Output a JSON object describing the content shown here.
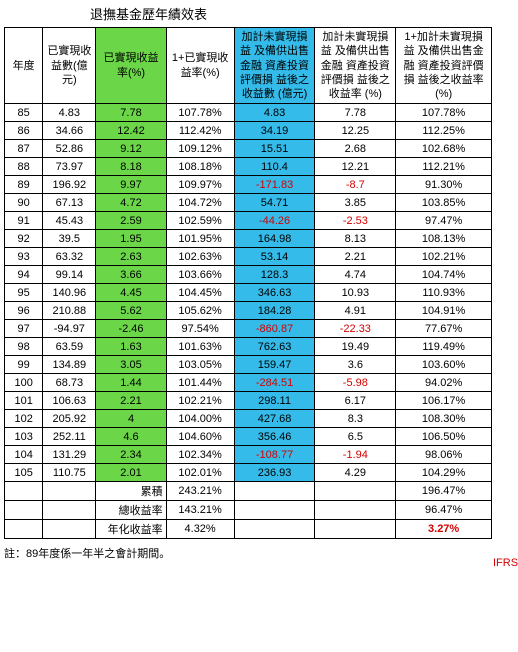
{
  "title": "退撫基金歷年績效表",
  "headers": {
    "year": "年度",
    "realized_amt": "已實現收益數(億元)",
    "realized_rate": "已實現收益率(%)",
    "one_plus_realized": "1+已實現收益率(%)",
    "unrealized_amt": "加計未實現損益 及備供出售金融 資產投資評價損 益後之收益數 (億元)",
    "unrealized_rate": "加計未實現損益 及備供出售金融 資產投資評價損 益後之收益率 (%)",
    "one_plus_unrealized": "1+加計未實現損益 及備供出售金融 資產投資評價損 益後之收益率 (%)"
  },
  "rows": [
    {
      "y": "85",
      "ra": "4.83",
      "rr": "7.78",
      "opr": "107.78%",
      "ua": "4.83",
      "ur": "7.78",
      "opu": "107.78%"
    },
    {
      "y": "86",
      "ra": "34.66",
      "rr": "12.42",
      "opr": "112.42%",
      "ua": "34.19",
      "ur": "12.25",
      "opu": "112.25%"
    },
    {
      "y": "87",
      "ra": "52.86",
      "rr": "9.12",
      "opr": "109.12%",
      "ua": "15.51",
      "ur": "2.68",
      "opu": "102.68%"
    },
    {
      "y": "88",
      "ra": "73.97",
      "rr": "8.18",
      "opr": "108.18%",
      "ua": "110.4",
      "ur": "12.21",
      "opu": "112.21%"
    },
    {
      "y": "89",
      "ra": "196.92",
      "rr": "9.97",
      "opr": "109.97%",
      "ua": "-171.83",
      "ur": "-8.7",
      "opu": "91.30%",
      "uaNeg": true,
      "urNeg": true
    },
    {
      "y": "90",
      "ra": "67.13",
      "rr": "4.72",
      "opr": "104.72%",
      "ua": "54.71",
      "ur": "3.85",
      "opu": "103.85%"
    },
    {
      "y": "91",
      "ra": "45.43",
      "rr": "2.59",
      "opr": "102.59%",
      "ua": "-44.26",
      "ur": "-2.53",
      "opu": "97.47%",
      "uaNeg": true,
      "urNeg": true
    },
    {
      "y": "92",
      "ra": "39.5",
      "rr": "1.95",
      "opr": "101.95%",
      "ua": "164.98",
      "ur": "8.13",
      "opu": "108.13%"
    },
    {
      "y": "93",
      "ra": "63.32",
      "rr": "2.63",
      "opr": "102.63%",
      "ua": "53.14",
      "ur": "2.21",
      "opu": "102.21%"
    },
    {
      "y": "94",
      "ra": "99.14",
      "rr": "3.66",
      "opr": "103.66%",
      "ua": "128.3",
      "ur": "4.74",
      "opu": "104.74%"
    },
    {
      "y": "95",
      "ra": "140.96",
      "rr": "4.45",
      "opr": "104.45%",
      "ua": "346.63",
      "ur": "10.93",
      "opu": "110.93%"
    },
    {
      "y": "96",
      "ra": "210.88",
      "rr": "5.62",
      "opr": "105.62%",
      "ua": "184.28",
      "ur": "4.91",
      "opu": "104.91%"
    },
    {
      "y": "97",
      "ra": "-94.97",
      "rr": "-2.46",
      "opr": "97.54%",
      "ua": "-860.87",
      "ur": "-22.33",
      "opu": "77.67%",
      "uaNeg": true,
      "urNeg": true
    },
    {
      "y": "98",
      "ra": "63.59",
      "rr": "1.63",
      "opr": "101.63%",
      "ua": "762.63",
      "ur": "19.49",
      "opu": "119.49%"
    },
    {
      "y": "99",
      "ra": "134.89",
      "rr": "3.05",
      "opr": "103.05%",
      "ua": "159.47",
      "ur": "3.6",
      "opu": "103.60%"
    },
    {
      "y": "100",
      "ra": "68.73",
      "rr": "1.44",
      "opr": "101.44%",
      "ua": "-284.51",
      "ur": "-5.98",
      "opu": "94.02%",
      "uaNeg": true,
      "urNeg": true
    },
    {
      "y": "101",
      "ra": "106.63",
      "rr": "2.21",
      "opr": "102.21%",
      "ua": "298.11",
      "ur": "6.17",
      "opu": "106.17%"
    },
    {
      "y": "102",
      "ra": "205.92",
      "rr": "4",
      "opr": "104.00%",
      "ua": "427.68",
      "ur": "8.3",
      "opu": "108.30%"
    },
    {
      "y": "103",
      "ra": "252.11",
      "rr": "4.6",
      "opr": "104.60%",
      "ua": "356.46",
      "ur": "6.5",
      "opu": "106.50%"
    },
    {
      "y": "104",
      "ra": "131.29",
      "rr": "2.34",
      "opr": "102.34%",
      "ua": "-108.77",
      "ur": "-1.94",
      "opu": "98.06%",
      "uaNeg": true,
      "urNeg": true
    },
    {
      "y": "105",
      "ra": "110.75",
      "rr": "2.01",
      "opr": "102.01%",
      "ua": "236.93",
      "ur": "4.29",
      "opu": "104.29%"
    }
  ],
  "summary": {
    "cumulative_label": "累積",
    "cumulative_opr": "243.21%",
    "cumulative_opu": "196.47%",
    "total_rate_label": "總收益率",
    "total_rate_opr": "143.21%",
    "total_rate_opu": "96.47%",
    "annual_rate_label": "年化收益率",
    "annual_rate_opr": "4.32%",
    "annual_rate_opu": "3.27%"
  },
  "side_note": "IFRS開始",
  "footnote": "註：89年度係一年半之會計期間。",
  "colors": {
    "green": "#6ad648",
    "blue": "#34bbea",
    "neg": "#d40000"
  }
}
